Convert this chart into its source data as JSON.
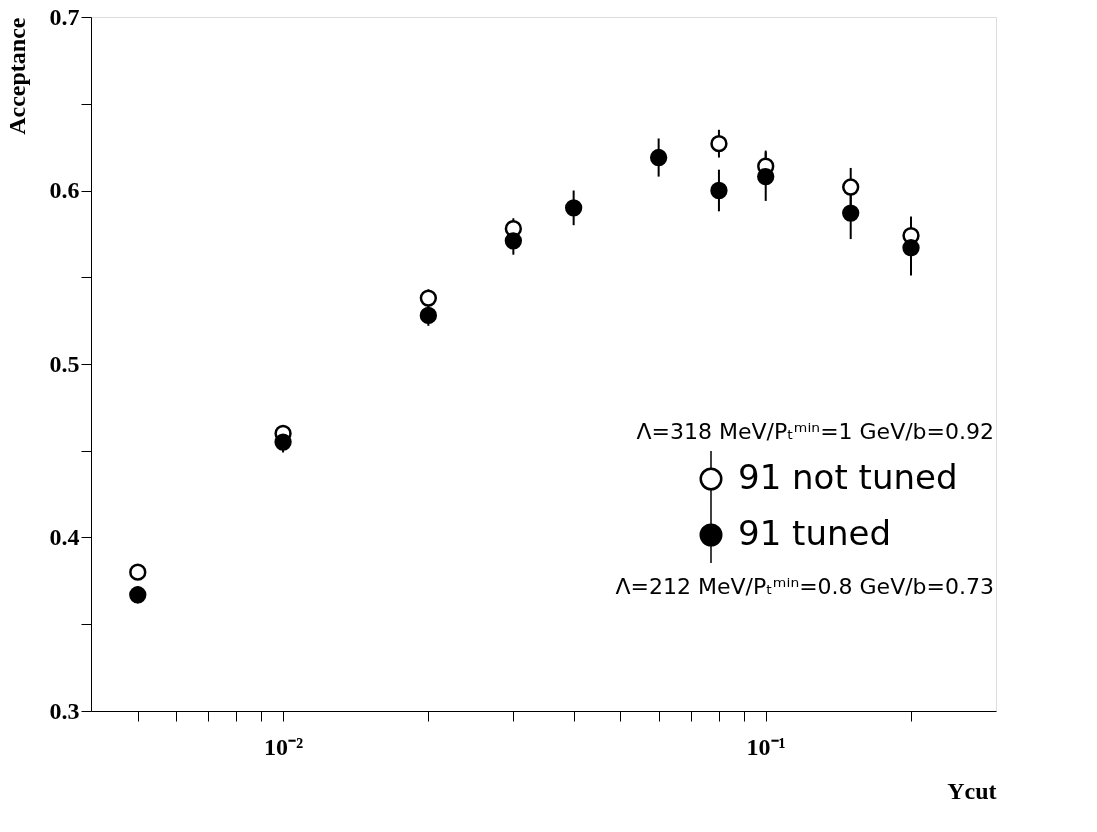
{
  "chart_data": {
    "type": "scatter",
    "xlabel": "Ycut",
    "ylabel": "Acceptance",
    "log": "x",
    "x": [
      0.005,
      0.01,
      0.02,
      0.03,
      0.04,
      0.06,
      0.08,
      0.1,
      0.15,
      0.2
    ],
    "series": [
      {
        "name": "91 not tuned",
        "color": "#ffffff",
        "values": [
          0.38,
          0.46,
          0.538,
          0.578,
          null,
          null,
          0.627,
          0.614,
          0.602,
          0.574
        ],
        "errors": [
          0.004,
          0.004,
          0.005,
          0.006,
          null,
          null,
          0.008,
          0.009,
          0.011,
          0.011
        ]
      },
      {
        "name": "91 tuned",
        "color": "#000000",
        "values": [
          0.367,
          0.455,
          0.528,
          0.571,
          0.59,
          0.619,
          0.6,
          0.608,
          0.587,
          0.567
        ],
        "errors": [
          0.005,
          0.006,
          0.006,
          0.008,
          0.01,
          0.011,
          0.012,
          0.014,
          0.015,
          0.016
        ]
      }
    ],
    "marker": "circle",
    "legend": "bottom right",
    "grid": false,
    "xlim": [
      0.004,
      0.3
    ],
    "xticks": [
      {
        "value": 0.005,
        "label": null
      },
      {
        "value": 0.006,
        "label": null
      },
      {
        "value": 0.007,
        "label": null
      },
      {
        "value": 0.008,
        "label": null
      },
      {
        "value": 0.009,
        "label": null
      },
      {
        "value": 0.01,
        "label": "10⁻²"
      },
      {
        "value": 0.02,
        "label": null
      },
      {
        "value": 0.03,
        "label": null
      },
      {
        "value": 0.04,
        "label": null
      },
      {
        "value": 0.05,
        "label": null
      },
      {
        "value": 0.06,
        "label": null
      },
      {
        "value": 0.07,
        "label": null
      },
      {
        "value": 0.08,
        "label": null
      },
      {
        "value": 0.09,
        "label": null
      },
      {
        "value": 0.1,
        "label": "10⁻¹"
      },
      {
        "value": 0.2,
        "label": null
      }
    ],
    "ylim": [
      0.3,
      0.7
    ],
    "yticks": [
      0.3,
      {
        "value": 0.35,
        "label": null
      },
      0.4,
      {
        "value": 0.45,
        "label": null
      },
      0.5,
      {
        "value": 0.55,
        "label": null
      },
      0.6,
      {
        "value": 0.65,
        "label": null
      },
      0.7
    ],
    "annotations": [
      "Λ=318 MeV/Pₜᵐⁱⁿ=1 GeV/b=0.92",
      "Λ=212 MeV/Pₜᵐⁱⁿ=0.8 GeV/b=0.73"
    ]
  }
}
